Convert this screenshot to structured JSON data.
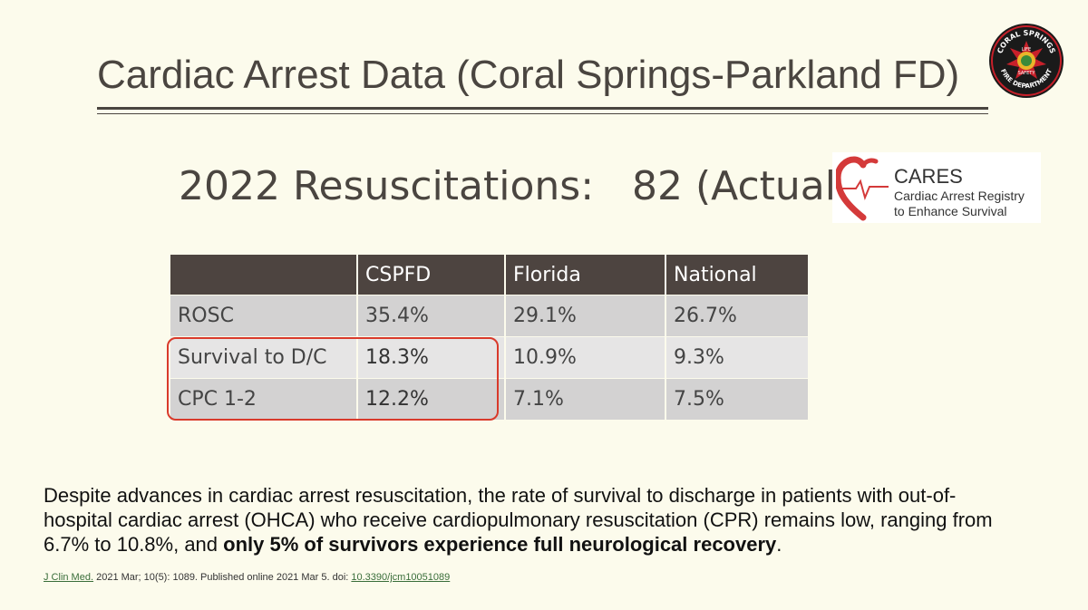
{
  "slide": {
    "title": "Cardiac Arrest Data (Coral Springs-Parkland FD)",
    "subtitle": "2022 Resuscitations:   82 (Actual)"
  },
  "seal": {
    "top_text": "CORAL SPRINGS",
    "bottom_text": "FIRE DEPARTMENT",
    "center_top": "LIFE",
    "center_bottom": "SAFETY",
    "colors": {
      "outer": "#1a1a1a",
      "ring": "#c8202a",
      "center": "#e9b52a"
    }
  },
  "cares_logo": {
    "name": "CARES",
    "line1": "Cardiac Arrest Registry",
    "line2": "to Enhance Survival",
    "heart_color": "#d43a3a"
  },
  "table": {
    "headers": [
      "",
      "CSPFD",
      "Florida",
      "National"
    ],
    "rows": [
      {
        "label": "ROSC",
        "cspfd": "35.4%",
        "florida": "29.1%",
        "national": "26.7%"
      },
      {
        "label": "Survival to D/C",
        "cspfd": "18.3%",
        "florida": "10.9%",
        "national": "9.3%"
      },
      {
        "label": "CPC 1-2",
        "cspfd": "12.2%",
        "florida": "7.1%",
        "national": "7.5%"
      }
    ],
    "highlight_color": "#d93a2b"
  },
  "body": {
    "text_plain": "Despite advances in cardiac arrest resuscitation, the rate of survival to discharge in patients with out-of-hospital cardiac arrest (OHCA) who receive cardiopulmonary resuscitation (CPR) remains low, ranging from 6.7% to 10.8%, and ",
    "text_bold": "only 5% of survivors experience full neurological recovery",
    "text_end": "."
  },
  "citation": {
    "journal": "J Clin Med.",
    "details": " 2021 Mar; 10(5): 1089. Published online 2021 Mar 5. doi: ",
    "doi": "10.3390/jcm10051089"
  }
}
